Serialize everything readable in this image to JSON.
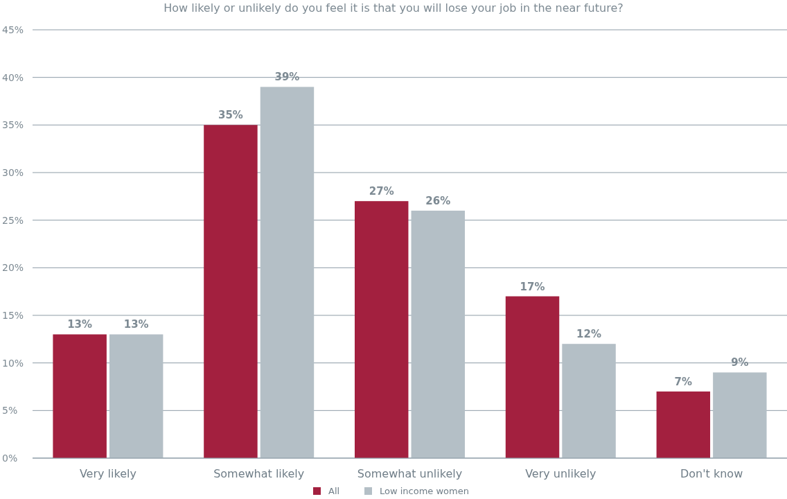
{
  "chart_data": {
    "type": "bar",
    "title": "How likely or unlikely do you feel it is that you will lose your job in the near future?",
    "categories": [
      "Very likely",
      "Somewhat likely",
      "Somewhat unlikely",
      "Very unlikely",
      "Don't know"
    ],
    "series": [
      {
        "name": "All",
        "color": "#a3203f",
        "values": [
          13,
          35,
          27,
          17,
          7
        ],
        "value_labels": [
          "13%",
          "35%",
          "27%",
          "17%",
          "7%"
        ]
      },
      {
        "name": "Low income women",
        "color": "#b4bfc6",
        "values": [
          13,
          39,
          26,
          12,
          9
        ],
        "value_labels": [
          "13%",
          "39%",
          "26%",
          "12%",
          "9%"
        ]
      }
    ],
    "ylim": [
      0,
      45
    ],
    "yticks": [
      {
        "value": 0,
        "label": "0%"
      },
      {
        "value": 5,
        "label": "5%"
      },
      {
        "value": 10,
        "label": "10%"
      },
      {
        "value": 15,
        "label": "15%"
      },
      {
        "value": 20,
        "label": "20%"
      },
      {
        "value": 25,
        "label": "25%"
      },
      {
        "value": 30,
        "label": "30%"
      },
      {
        "value": 35,
        "label": "35%"
      },
      {
        "value": 40,
        "label": "40%"
      },
      {
        "value": 45,
        "label": "45%"
      }
    ],
    "grid": "y",
    "legend": "bottom"
  }
}
